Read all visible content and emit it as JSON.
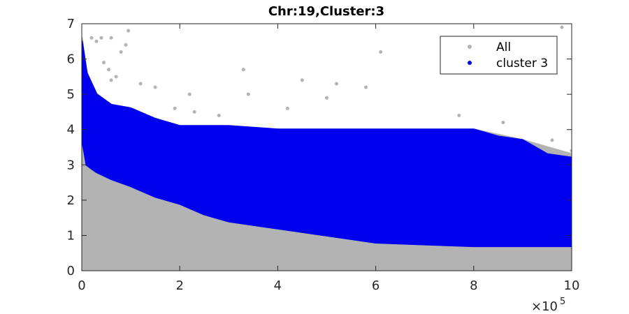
{
  "chart_data": {
    "type": "scatter",
    "title": "Chr:19,Cluster:3",
    "xlabel": "",
    "ylabel": "",
    "x_exponent_label": "×10",
    "x_exponent_power": "5",
    "xlim": [
      0,
      10
    ],
    "ylim": [
      0,
      7
    ],
    "x_ticks": [
      "0",
      "2",
      "4",
      "6",
      "8",
      "10"
    ],
    "y_ticks": [
      "0",
      "1",
      "2",
      "3",
      "4",
      "5",
      "6",
      "7"
    ],
    "grid": false,
    "legend_position": "top-right",
    "series": [
      {
        "name": "All",
        "color": "#b3b3b3",
        "envelope_x": [
          0,
          0.1,
          0.3,
          0.6,
          1,
          1.5,
          2,
          3,
          4,
          5,
          6,
          7,
          8,
          9,
          10
        ],
        "envelope_upper": [
          6.6,
          5.5,
          4.9,
          4.6,
          4.5,
          4.3,
          4.1,
          4.0,
          4.0,
          4.0,
          4.0,
          4.0,
          4.0,
          3.7,
          3.3
        ],
        "envelope_lower": [
          0,
          0,
          0,
          0,
          0,
          0,
          0,
          0,
          0,
          0,
          0,
          0,
          0,
          0,
          0
        ],
        "outlier_points": [
          [
            0.2,
            6.6
          ],
          [
            0.3,
            6.5
          ],
          [
            0.4,
            6.6
          ],
          [
            0.6,
            6.6
          ],
          [
            0.95,
            6.8
          ],
          [
            0.8,
            6.2
          ],
          [
            0.9,
            6.4
          ],
          [
            0.45,
            5.9
          ],
          [
            0.55,
            5.7
          ],
          [
            0.6,
            5.4
          ],
          [
            0.7,
            5.5
          ],
          [
            1.2,
            5.3
          ],
          [
            1.5,
            5.2
          ],
          [
            1.9,
            4.6
          ],
          [
            2.2,
            5.0
          ],
          [
            3.3,
            5.7
          ],
          [
            3.4,
            5.0
          ],
          [
            4.5,
            5.4
          ],
          [
            5.0,
            4.9
          ],
          [
            5.2,
            5.3
          ],
          [
            5.8,
            5.2
          ],
          [
            6.1,
            6.2
          ],
          [
            4.2,
            4.6
          ],
          [
            7.7,
            4.4
          ],
          [
            8.6,
            4.2
          ],
          [
            9.8,
            6.9
          ],
          [
            10.0,
            3.4
          ],
          [
            9.6,
            3.7
          ],
          [
            2.8,
            4.4
          ],
          [
            2.3,
            4.5
          ]
        ]
      },
      {
        "name": "cluster 3",
        "color": "#0000ee",
        "envelope_x": [
          0,
          0.1,
          0.3,
          0.6,
          1,
          1.5,
          2,
          2.5,
          3,
          4,
          5,
          6,
          7,
          8,
          8.5,
          9,
          9.5,
          10
        ],
        "envelope_upper": [
          6.5,
          5.6,
          5.0,
          4.7,
          4.6,
          4.3,
          4.1,
          4.1,
          4.1,
          4.0,
          4.0,
          4.0,
          4.0,
          4.0,
          3.8,
          3.7,
          3.3,
          3.2
        ],
        "envelope_lower": [
          3.8,
          3.0,
          2.8,
          2.6,
          2.4,
          2.1,
          1.9,
          1.6,
          1.4,
          1.2,
          1.0,
          0.8,
          0.75,
          0.7,
          0.7,
          0.7,
          0.7,
          0.7
        ]
      }
    ]
  }
}
